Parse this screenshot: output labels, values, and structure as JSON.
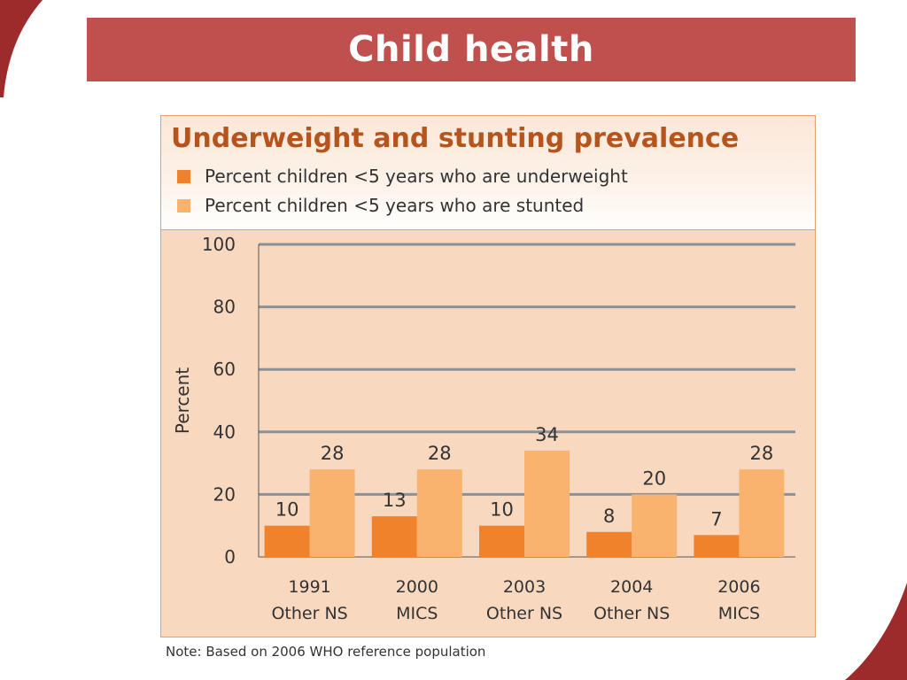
{
  "slide": {
    "title": "Child health",
    "note": "Note: Based on 2006 WHO reference population"
  },
  "colors": {
    "title_bar": "#c0504d",
    "chart_title": "#b5541d",
    "underweight": "#f0822b",
    "stunted": "#f9b36f",
    "panel_bg": "#f9d8c0",
    "grid": "#8a9199"
  },
  "chart_data": {
    "type": "bar",
    "title": "Underweight and stunting prevalence",
    "ylabel": "Percent",
    "xlabel": "",
    "ylim": [
      0,
      100
    ],
    "yticks": [
      0,
      20,
      40,
      60,
      80,
      100
    ],
    "grid": true,
    "legend_position": "top-left",
    "categories": [
      [
        "1991",
        "Other NS"
      ],
      [
        "2000",
        "MICS"
      ],
      [
        "2003",
        "Other NS"
      ],
      [
        "2004",
        "Other NS"
      ],
      [
        "2006",
        "MICS"
      ]
    ],
    "series": [
      {
        "name": "Percent children <5 years who are underweight",
        "values": [
          10,
          13,
          10,
          8,
          7
        ],
        "color": "#f0822b"
      },
      {
        "name": "Percent children <5 years who are stunted",
        "values": [
          28,
          28,
          34,
          20,
          28
        ],
        "color": "#f9b36f"
      }
    ]
  }
}
